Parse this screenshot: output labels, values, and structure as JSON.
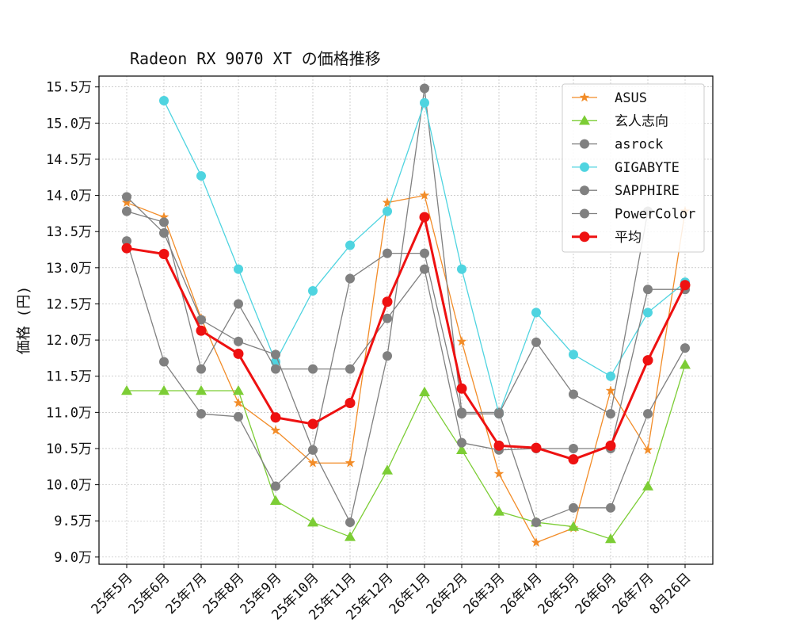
{
  "chart_data": {
    "type": "line",
    "title": "Radeon RX 9070 XT の価格推移",
    "xlabel": "",
    "ylabel": "価格 (円)",
    "x": [
      "25年5月",
      "25年6月",
      "25年7月",
      "25年8月",
      "25年9月",
      "25年10月",
      "25年11月",
      "25年12月",
      "26年1月",
      "26年2月",
      "26年3月",
      "26年4月",
      "26年5月",
      "26年6月",
      "26年7月",
      "8月26日"
    ],
    "y_ticks": [
      "9.0万",
      "9.5万",
      "10.0万",
      "10.5万",
      "11.0万",
      "11.5万",
      "12.0万",
      "12.5万",
      "13.0万",
      "13.5万",
      "14.0万",
      "14.5万",
      "15.0万",
      "15.5万"
    ],
    "ylim": [
      8.9,
      15.65
    ],
    "y_unit": "万",
    "grid": true,
    "legend_position": "top-right",
    "series": [
      {
        "name": "ASUS",
        "color": "#f28c28",
        "marker": "star",
        "values": [
          13.9,
          13.7,
          12.3,
          11.13,
          10.75,
          10.3,
          10.3,
          13.9,
          14.0,
          11.98,
          10.15,
          9.2,
          9.4,
          11.3,
          10.48,
          13.78
        ]
      },
      {
        "name": "玄人志向",
        "color": "#7ccd35",
        "marker": "triangle",
        "values": [
          11.3,
          11.3,
          11.3,
          11.3,
          9.78,
          9.48,
          9.28,
          10.2,
          11.28,
          10.48,
          9.63,
          9.48,
          9.42,
          9.25,
          9.98,
          11.66
        ]
      },
      {
        "name": "asrock",
        "color": "#808080",
        "marker": "circle",
        "values": [
          13.37,
          11.7,
          10.98,
          10.94,
          9.98,
          10.48,
          9.48,
          11.78,
          15.48,
          11.0,
          11.0,
          9.48,
          9.68,
          9.68,
          10.98,
          11.89
        ]
      },
      {
        "name": "GIGABYTE",
        "color": "#4fd4e0",
        "marker": "circle",
        "values": [
          null,
          15.31,
          14.27,
          12.98,
          11.7,
          12.68,
          13.31,
          13.78,
          15.28,
          12.98,
          10.98,
          12.38,
          11.8,
          11.5,
          12.38,
          12.8
        ]
      },
      {
        "name": "SAPPHIRE",
        "color": "#808080",
        "marker": "circle",
        "values": [
          13.98,
          13.48,
          12.28,
          11.98,
          11.8,
          10.48,
          12.85,
          13.2,
          13.2,
          10.98,
          10.98,
          11.97,
          11.25,
          10.98,
          13.78,
          null
        ]
      },
      {
        "name": "PowerColor",
        "color": "#808080",
        "marker": "circle",
        "values": [
          13.78,
          13.63,
          11.6,
          12.5,
          11.6,
          11.6,
          11.6,
          12.3,
          12.98,
          10.58,
          10.48,
          10.5,
          10.5,
          10.5,
          12.7,
          12.7
        ]
      },
      {
        "name": "平均",
        "color": "#ee1111",
        "marker": "circle",
        "bold": true,
        "values": [
          13.27,
          13.19,
          12.13,
          11.81,
          10.93,
          10.84,
          11.13,
          12.53,
          13.7,
          11.33,
          10.54,
          10.51,
          10.35,
          10.54,
          11.72,
          12.76
        ]
      }
    ]
  }
}
